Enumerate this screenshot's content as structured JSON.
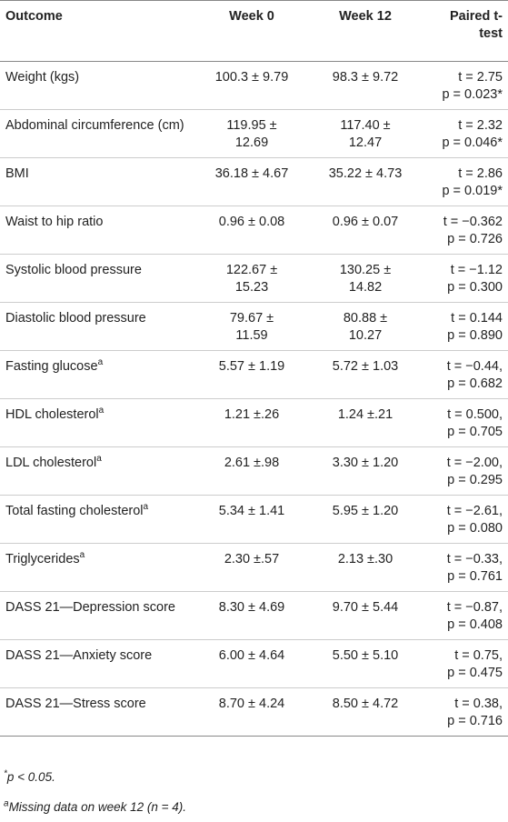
{
  "table": {
    "header": [
      "Outcome",
      "Week 0",
      "Week 12",
      "Paired t-test"
    ],
    "rows": [
      {
        "label": "Weight (kgs)",
        "week0": "100.3 ± 9.79",
        "week12": "98.3 ± 9.72",
        "t": "t = 2.75",
        "p": "p = 0.023*"
      },
      {
        "label": "Abdominal circumference (cm)",
        "week0": "119.95 ± 12.69",
        "week12": "117.40 ± 12.47",
        "t": "t = 2.32",
        "p": "p = 0.046*"
      },
      {
        "label": "BMI",
        "week0": "36.18 ± 4.67",
        "week12": "35.22 ± 4.73",
        "t": "t = 2.86",
        "p": "p = 0.019*"
      },
      {
        "label": "Waist to hip ratio",
        "week0": "0.96 ± 0.08",
        "week12": "0.96 ± 0.07",
        "t": "t = −0.362",
        "p": "p = 0.726"
      },
      {
        "label": "Systolic blood pressure",
        "week0": "122.67 ± 15.23",
        "week12": "130.25 ± 14.82",
        "t": "t = −1.12",
        "p": "p = 0.300"
      },
      {
        "label": "Diastolic blood pressure",
        "week0": "79.67 ± 11.59",
        "week12": "80.88 ± 10.27",
        "t": "t = 0.144",
        "p": "p = 0.890"
      },
      {
        "label": "Fasting glucose",
        "note": "a",
        "week0": "5.57 ± 1.19",
        "week12": "5.72 ± 1.03",
        "t": "t = −0.44,",
        "p": "p = 0.682"
      },
      {
        "label": "HDL cholesterol",
        "note": "a",
        "week0": "1.21 ±.26",
        "week12": "1.24 ±.21",
        "t": "t = 0.500,",
        "p": "p = 0.705"
      },
      {
        "label": "LDL cholesterol",
        "note": "a",
        "week0": "2.61 ±.98",
        "week12": "3.30 ± 1.20",
        "t": "t = −2.00,",
        "p": "p = 0.295"
      },
      {
        "label": "Total fasting cholesterol",
        "note": "a",
        "week0": "5.34 ± 1.41",
        "week12": "5.95 ± 1.20",
        "t": "t = −2.61,",
        "p": "p = 0.080"
      },
      {
        "label": "Triglycerides",
        "note": "a",
        "week0": "2.30 ±.57",
        "week12": "2.13 ±.30",
        "t": "t = −0.33,",
        "p": "p = 0.761"
      },
      {
        "label": "DASS 21—Depression score",
        "week0": "8.30 ± 4.69",
        "week12": "9.70 ± 5.44",
        "t": "t = −0.87,",
        "p": "p = 0.408"
      },
      {
        "label": "DASS 21—Anxiety score",
        "week0": "6.00 ± 4.64",
        "week12": "5.50 ± 5.10",
        "t": "t = 0.75,",
        "p": "p = 0.475"
      },
      {
        "label": "DASS 21—Stress score",
        "week0": "8.70 ± 4.24",
        "week12": "8.50 ± 4.72",
        "t": "t = 0.38,",
        "p": "p = 0.716"
      }
    ],
    "footnotes": [
      {
        "mark": "*",
        "text": "p < 0.05."
      },
      {
        "mark": "a",
        "text": "Missing data on week 12 (n = 4)."
      }
    ]
  }
}
